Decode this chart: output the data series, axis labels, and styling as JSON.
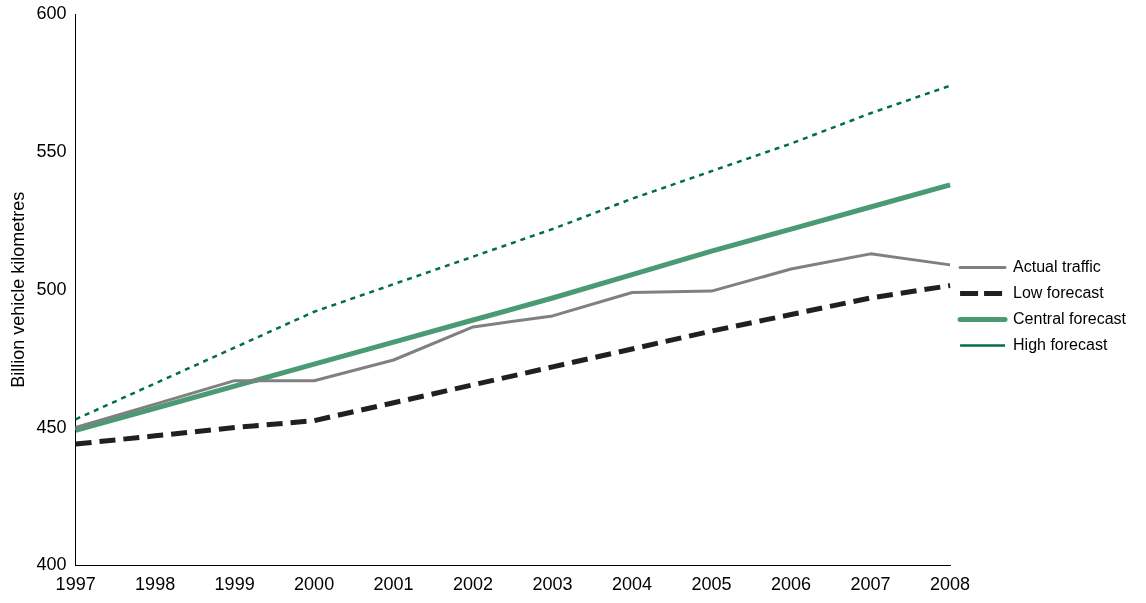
{
  "chart_data": {
    "type": "line",
    "ylabel": "Billion vehicle kilometres",
    "categories": [
      "1997",
      "1998",
      "1999",
      "2000",
      "2001",
      "2002",
      "2003",
      "2004",
      "2005",
      "2006",
      "2007",
      "2008"
    ],
    "ylim": [
      400,
      600
    ],
    "yticks": [
      400,
      450,
      500,
      550,
      600
    ],
    "grid": false,
    "legend": "right",
    "marker": "none",
    "series": [
      {
        "name": "Actual traffic",
        "color": "#808080",
        "line_style": "solid",
        "values": [
          450,
          458.5,
          467,
          467,
          474.5,
          486.5,
          490.5,
          499,
          499.5,
          507.5,
          513,
          509
        ]
      },
      {
        "name": "Low forecast",
        "color": "#231f20",
        "line_style": "dashed",
        "values": [
          444,
          447,
          450,
          452.5,
          459,
          465.5,
          472,
          478.5,
          485,
          491,
          497,
          501.5
        ]
      },
      {
        "name": "Central forecast",
        "color": "#4a9a73",
        "line_style": "solid",
        "values": [
          449,
          457,
          465,
          473,
          481,
          489,
          497,
          505.5,
          514,
          522,
          530,
          538
        ]
      },
      {
        "name": "High forecast",
        "color": "#007040",
        "line_style": "dotted",
        "values": [
          453,
          466,
          479,
          492,
          502,
          512,
          522,
          533,
          543,
          553,
          564,
          574
        ]
      }
    ]
  }
}
